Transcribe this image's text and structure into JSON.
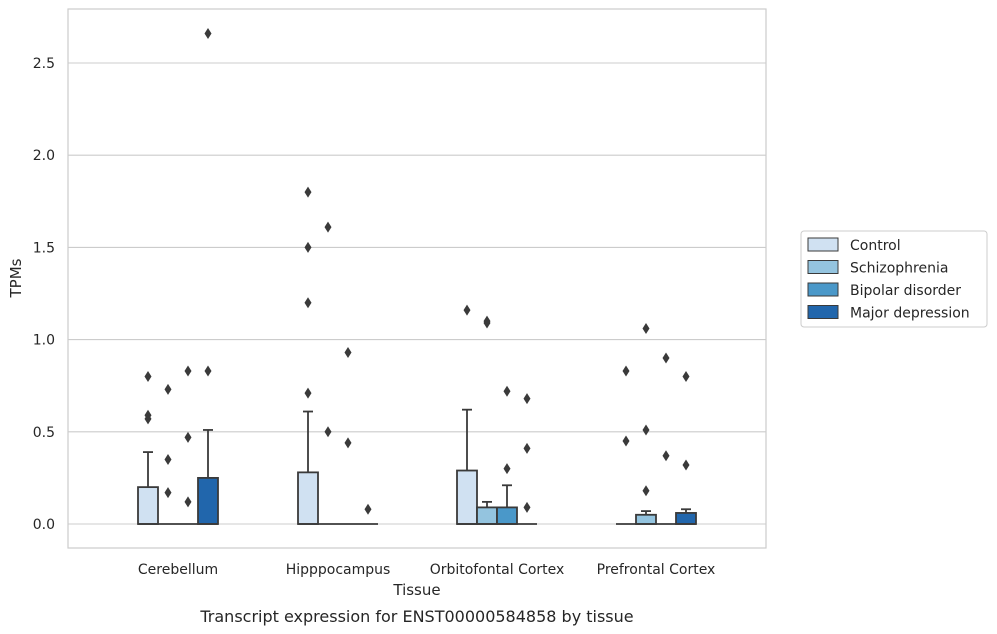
{
  "chart_data": {
    "type": "box",
    "xlabel": "Tissue",
    "ylabel": "TPMs",
    "caption": "Transcript expression for ENST00000584858 by tissue",
    "ylim": [
      -0.13,
      2.8
    ],
    "yticks": [
      0.0,
      0.5,
      1.0,
      1.5,
      2.0,
      2.5
    ],
    "ytick_labels": [
      "0.0",
      "0.5",
      "1.0",
      "1.5",
      "2.0",
      "2.5"
    ],
    "categories": [
      "Cerebellum",
      "Hipppocampus",
      "Orbitofontal Cortex",
      "Prefrontal Cortex"
    ],
    "grid": "horizontal",
    "legend_position": "right",
    "series": [
      {
        "name": "Control",
        "color": "#d0e1f2",
        "boxes": [
          {
            "q1": 0.0,
            "median": 0.0,
            "q3": 0.2,
            "whisker_low": 0.0,
            "whisker_high": 0.39,
            "outliers": [
              0.57,
              0.59,
              0.8
            ]
          },
          {
            "q1": 0.0,
            "median": 0.0,
            "q3": 0.28,
            "whisker_low": 0.0,
            "whisker_high": 0.61,
            "outliers": [
              0.71,
              1.2,
              1.5,
              1.8
            ]
          },
          {
            "q1": 0.0,
            "median": 0.0,
            "q3": 0.29,
            "whisker_low": 0.0,
            "whisker_high": 0.62,
            "outliers": [
              1.16
            ]
          },
          {
            "q1": 0.0,
            "median": 0.0,
            "q3": 0.0,
            "whisker_low": 0.0,
            "whisker_high": 0.0,
            "outliers": [
              0.45,
              0.83
            ]
          }
        ]
      },
      {
        "name": "Schizophrenia",
        "color": "#94c4df",
        "boxes": [
          {
            "q1": 0.0,
            "median": 0.0,
            "q3": 0.0,
            "whisker_low": 0.0,
            "whisker_high": 0.0,
            "outliers": [
              0.17,
              0.35,
              0.73
            ]
          },
          {
            "q1": 0.0,
            "median": 0.0,
            "q3": 0.0,
            "whisker_low": 0.0,
            "whisker_high": 0.0,
            "outliers": [
              0.5,
              1.61
            ]
          },
          {
            "q1": 0.0,
            "median": 0.0,
            "q3": 0.09,
            "whisker_low": 0.0,
            "whisker_high": 0.12,
            "outliers": [
              1.09,
              1.1
            ]
          },
          {
            "q1": 0.0,
            "median": 0.0,
            "q3": 0.05,
            "whisker_low": 0.0,
            "whisker_high": 0.07,
            "outliers": [
              0.18,
              0.51,
              1.06
            ]
          }
        ]
      },
      {
        "name": "Bipolar disorder",
        "color": "#4a98c9",
        "boxes": [
          {
            "q1": 0.0,
            "median": 0.0,
            "q3": 0.0,
            "whisker_low": 0.0,
            "whisker_high": 0.0,
            "outliers": [
              0.12,
              0.47,
              0.83
            ]
          },
          {
            "q1": 0.0,
            "median": 0.0,
            "q3": 0.0,
            "whisker_low": 0.0,
            "whisker_high": 0.0,
            "outliers": [
              0.44,
              0.93
            ]
          },
          {
            "q1": 0.0,
            "median": 0.0,
            "q3": 0.09,
            "whisker_low": 0.0,
            "whisker_high": 0.21,
            "outliers": [
              0.3,
              0.72
            ]
          },
          {
            "q1": 0.0,
            "median": 0.0,
            "q3": 0.0,
            "whisker_low": 0.0,
            "whisker_high": 0.0,
            "outliers": [
              0.37,
              0.9
            ]
          }
        ]
      },
      {
        "name": "Major depression",
        "color": "#2166ac",
        "boxes": [
          {
            "q1": 0.0,
            "median": 0.0,
            "q3": 0.25,
            "whisker_low": 0.0,
            "whisker_high": 0.51,
            "outliers": [
              0.83,
              2.66
            ]
          },
          {
            "q1": 0.0,
            "median": 0.0,
            "q3": 0.0,
            "whisker_low": 0.0,
            "whisker_high": 0.0,
            "outliers": [
              0.08
            ]
          },
          {
            "q1": 0.0,
            "median": 0.0,
            "q3": 0.0,
            "whisker_low": 0.0,
            "whisker_high": 0.0,
            "outliers": [
              0.09,
              0.41,
              0.68
            ]
          },
          {
            "q1": 0.0,
            "median": 0.0,
            "q3": 0.06,
            "whisker_low": 0.0,
            "whisker_high": 0.08,
            "outliers": [
              0.32,
              0.8
            ]
          }
        ]
      }
    ]
  }
}
